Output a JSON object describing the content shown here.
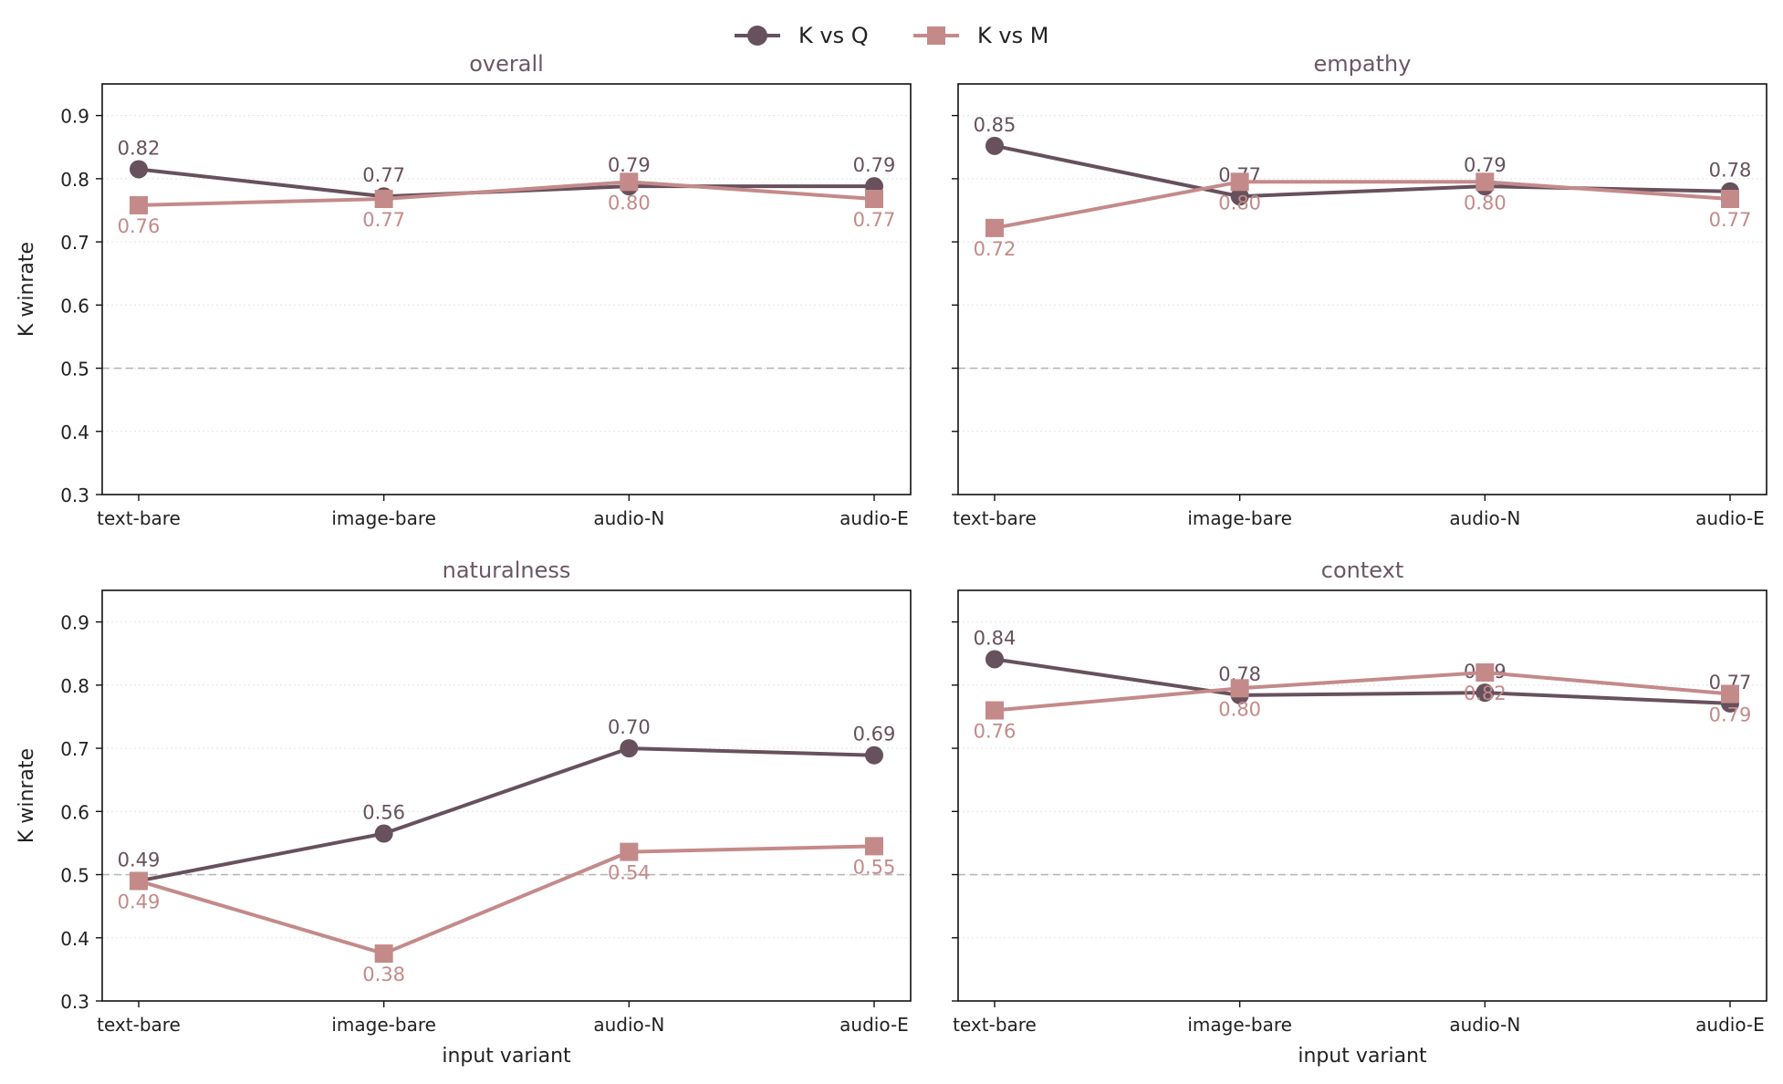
{
  "chart_data": {
    "type": "line",
    "legend_position": "top-center",
    "categories": [
      "text-bare",
      "image-bare",
      "audio-N",
      "audio-E"
    ],
    "ylim": [
      0.3,
      0.95
    ],
    "yticks": [
      0.3,
      0.4,
      0.5,
      0.6,
      0.7,
      0.8,
      0.9
    ],
    "reference_line": 0.5,
    "grid": "horizontal dotted",
    "xlabel": "input variant",
    "ylabel": "K winrate",
    "series_styles": [
      {
        "name": "K vs Q",
        "color": "#67515d",
        "marker": "circle"
      },
      {
        "name": "K vs M",
        "color": "#c48a8a",
        "marker": "square"
      }
    ],
    "panels": [
      {
        "title": "overall",
        "series": [
          {
            "name": "K vs Q",
            "values": [
              0.815,
              0.772,
              0.788,
              0.788
            ],
            "labels": [
              "0.82",
              "0.77",
              "0.79",
              "0.79"
            ]
          },
          {
            "name": "K vs M",
            "values": [
              0.758,
              0.768,
              0.795,
              0.768
            ],
            "labels": [
              "0.76",
              "0.77",
              "0.80",
              "0.77"
            ]
          }
        ]
      },
      {
        "title": "empathy",
        "series": [
          {
            "name": "K vs Q",
            "values": [
              0.852,
              0.772,
              0.788,
              0.78
            ],
            "labels": [
              "0.85",
              "0.77",
              "0.79",
              "0.78"
            ]
          },
          {
            "name": "K vs M",
            "values": [
              0.722,
              0.795,
              0.795,
              0.768
            ],
            "labels": [
              "0.72",
              "0.80",
              "0.80",
              "0.77"
            ]
          }
        ]
      },
      {
        "title": "naturalness",
        "series": [
          {
            "name": "K vs Q",
            "values": [
              0.49,
              0.565,
              0.7,
              0.689
            ],
            "labels": [
              "0.49",
              "0.56",
              "0.70",
              "0.69"
            ]
          },
          {
            "name": "K vs M",
            "values": [
              0.49,
              0.375,
              0.536,
              0.545
            ],
            "labels": [
              "0.49",
              "0.38",
              "0.54",
              "0.55"
            ]
          }
        ]
      },
      {
        "title": "context",
        "series": [
          {
            "name": "K vs Q",
            "values": [
              0.841,
              0.784,
              0.788,
              0.771
            ],
            "labels": [
              "0.84",
              "0.78",
              "0.79",
              "0.77"
            ]
          },
          {
            "name": "K vs M",
            "values": [
              0.76,
              0.795,
              0.82,
              0.786
            ],
            "labels": [
              "0.76",
              "0.80",
              "0.82",
              "0.79"
            ]
          }
        ]
      }
    ]
  }
}
